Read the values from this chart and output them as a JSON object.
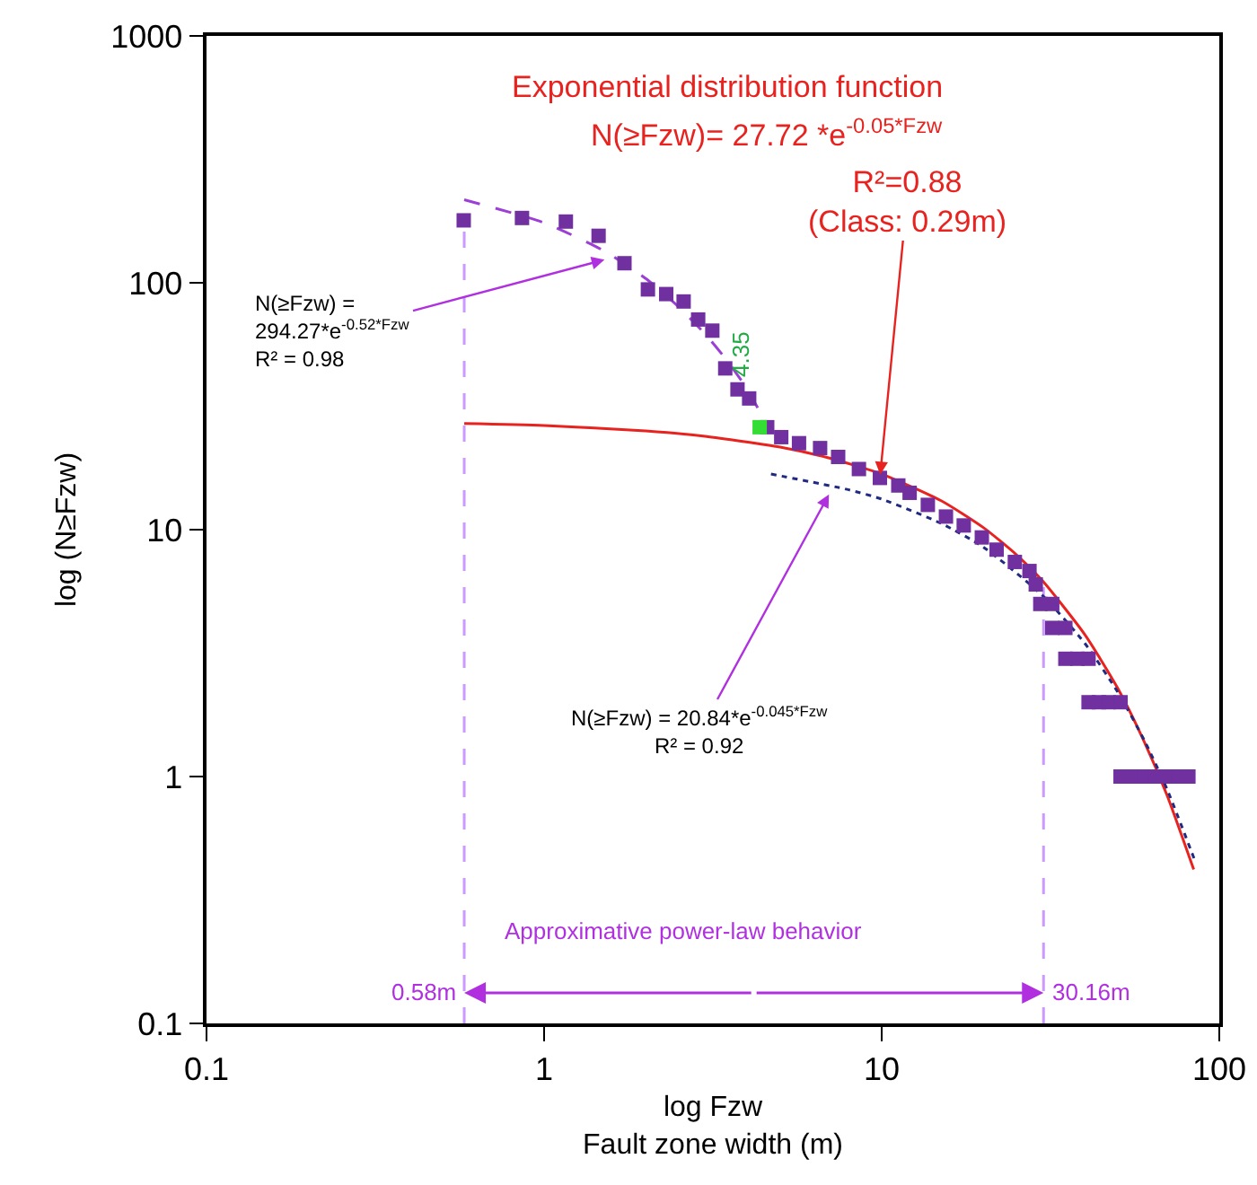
{
  "chart_data": {
    "type": "scatter",
    "log": "xy",
    "xlabel": "log Fzw\nFault zone width (m)",
    "ylabel": "log (N≥Fzw)",
    "xlim": [
      0.1,
      100
    ],
    "ylim": [
      0.1,
      1000
    ],
    "xticks": [
      0.1,
      1,
      10,
      100
    ],
    "yticks": [
      0.1,
      1,
      10,
      100,
      1000
    ],
    "series": [
      {
        "type": "line",
        "color": "#cc99ff",
        "line_style": "dashed",
        "marker": "none",
        "x": [
          0.58,
          0.58
        ],
        "values": [
          0.1,
          179
        ]
      },
      {
        "type": "line",
        "color": "#cc99ff",
        "line_style": "dashed",
        "marker": "none",
        "x": [
          30.16,
          30.16
        ],
        "values": [
          0.1,
          6.2
        ]
      },
      {
        "type": "line",
        "color": "#e8231f",
        "line_style": "solid",
        "marker": "none",
        "x": [
          0.58,
          1,
          2,
          3,
          5,
          7,
          10,
          15,
          20,
          25,
          30,
          40,
          50,
          60,
          70,
          84
        ],
        "values": [
          26.9,
          26.4,
          25.1,
          23.9,
          21.6,
          19.5,
          16.8,
          13.1,
          10.2,
          7.94,
          6.19,
          3.75,
          2.28,
          1.38,
          0.84,
          0.42
        ]
      },
      {
        "type": "line",
        "color": "#9b3fd6",
        "line_style": "dashed",
        "marker": "none",
        "x": [
          0.58,
          1,
          1.5,
          2,
          2.5,
          3,
          3.5,
          4,
          4.3
        ],
        "values": [
          217,
          175,
          135,
          104,
          80,
          62,
          48,
          37,
          31
        ]
      },
      {
        "type": "line",
        "color": "#1f2a80",
        "line_style": "dotted",
        "marker": "none",
        "x": [
          4.7,
          8,
          10,
          15,
          20,
          30,
          40,
          50,
          60,
          70,
          85
        ],
        "values": [
          16.8,
          14.5,
          13.3,
          10.6,
          8.5,
          5.4,
          3.46,
          2.2,
          1.4,
          0.89,
          0.45
        ]
      },
      {
        "color": "#7030a0",
        "marker": "square",
        "x": [
          0.578,
          0.86,
          1.16,
          1.45,
          1.73,
          2.03,
          2.3,
          2.59,
          2.86,
          3.15,
          3.44,
          3.74,
          4.05,
          4.58,
          5.04,
          5.69,
          6.57,
          7.43,
          8.56,
          9.88,
          11.2,
          12.1,
          13.7,
          15.5,
          17.5,
          19.8,
          21.9,
          24.8,
          27.4,
          28.6,
          29.5,
          32,
          32,
          35,
          35,
          38,
          41,
          41,
          44,
          47,
          51,
          51,
          55,
          60,
          65,
          70,
          76,
          81
        ],
        "values": [
          179,
          183,
          177,
          155,
          120,
          94,
          90,
          84,
          71,
          64,
          45,
          37,
          34,
          26,
          23.7,
          22.4,
          21.4,
          19.7,
          17.6,
          16.2,
          15.1,
          14.1,
          12.6,
          11.3,
          10.4,
          9.3,
          8.3,
          7.4,
          6.8,
          6,
          5,
          5,
          4,
          4,
          3,
          3,
          3,
          2,
          2,
          2,
          2,
          1,
          1,
          1,
          1,
          1,
          1,
          1
        ]
      },
      {
        "color": "#33dd33",
        "marker": "square",
        "x": [
          4.35
        ],
        "values": [
          26
        ]
      }
    ],
    "annotations": [
      "Exponential distribution function",
      "N(≥Fzw)= 27.72 *e$^{-0.05*Fzw}$",
      {
        "text": "R²=0.88\n(Class: 0.29m)",
        "x": 9.9,
        "y": 16.7
      },
      {
        "text": "N(≥Fzw) =\n294.27*e$^{-0.52*Fzw}$\nR² = 0.98",
        "x": 1.51,
        "y": 124
      },
      {
        "text": "N(≥Fzw) = 20.84*e$^{-0.045*Fzw}$\nR² = 0.92",
        "x": 6.98,
        "y": 13.9
      },
      {
        "text": "4.35",
        "x": 4.35,
        "y": 26
      },
      "Approximative power-law behavior",
      {
        "text": "0.58m",
        "x": 0.58,
        "y": 0.133
      },
      {
        "text": "30.16m",
        "x": 30.16,
        "y": 0.133
      }
    ]
  }
}
